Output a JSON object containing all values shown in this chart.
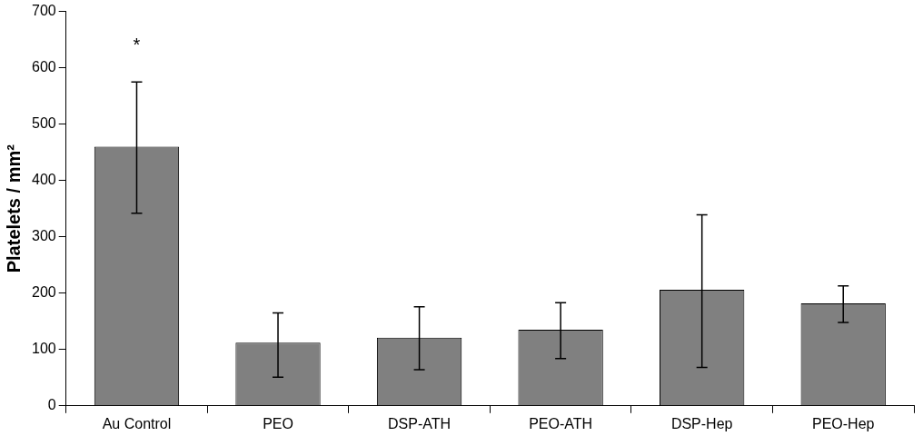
{
  "chart_data": {
    "type": "bar",
    "ylabel": "Platelets / mm²",
    "categories": [
      "Au Control",
      "PEO",
      "DSP-ATH",
      "PEO-ATH",
      "DSP-Hep",
      "PEO-Hep"
    ],
    "values": [
      460,
      112,
      121,
      135,
      206,
      182
    ],
    "errors": [
      [
        342,
        575
      ],
      [
        51,
        165
      ],
      [
        64,
        176
      ],
      [
        84,
        183
      ],
      [
        68,
        339
      ],
      [
        148,
        213
      ]
    ],
    "color": "#808080",
    "ylim": [
      0,
      700
    ],
    "yticks": [
      0,
      100,
      200,
      300,
      400,
      500,
      600,
      700
    ],
    "grid": false,
    "legend": false,
    "annotations": [
      "*"
    ]
  }
}
